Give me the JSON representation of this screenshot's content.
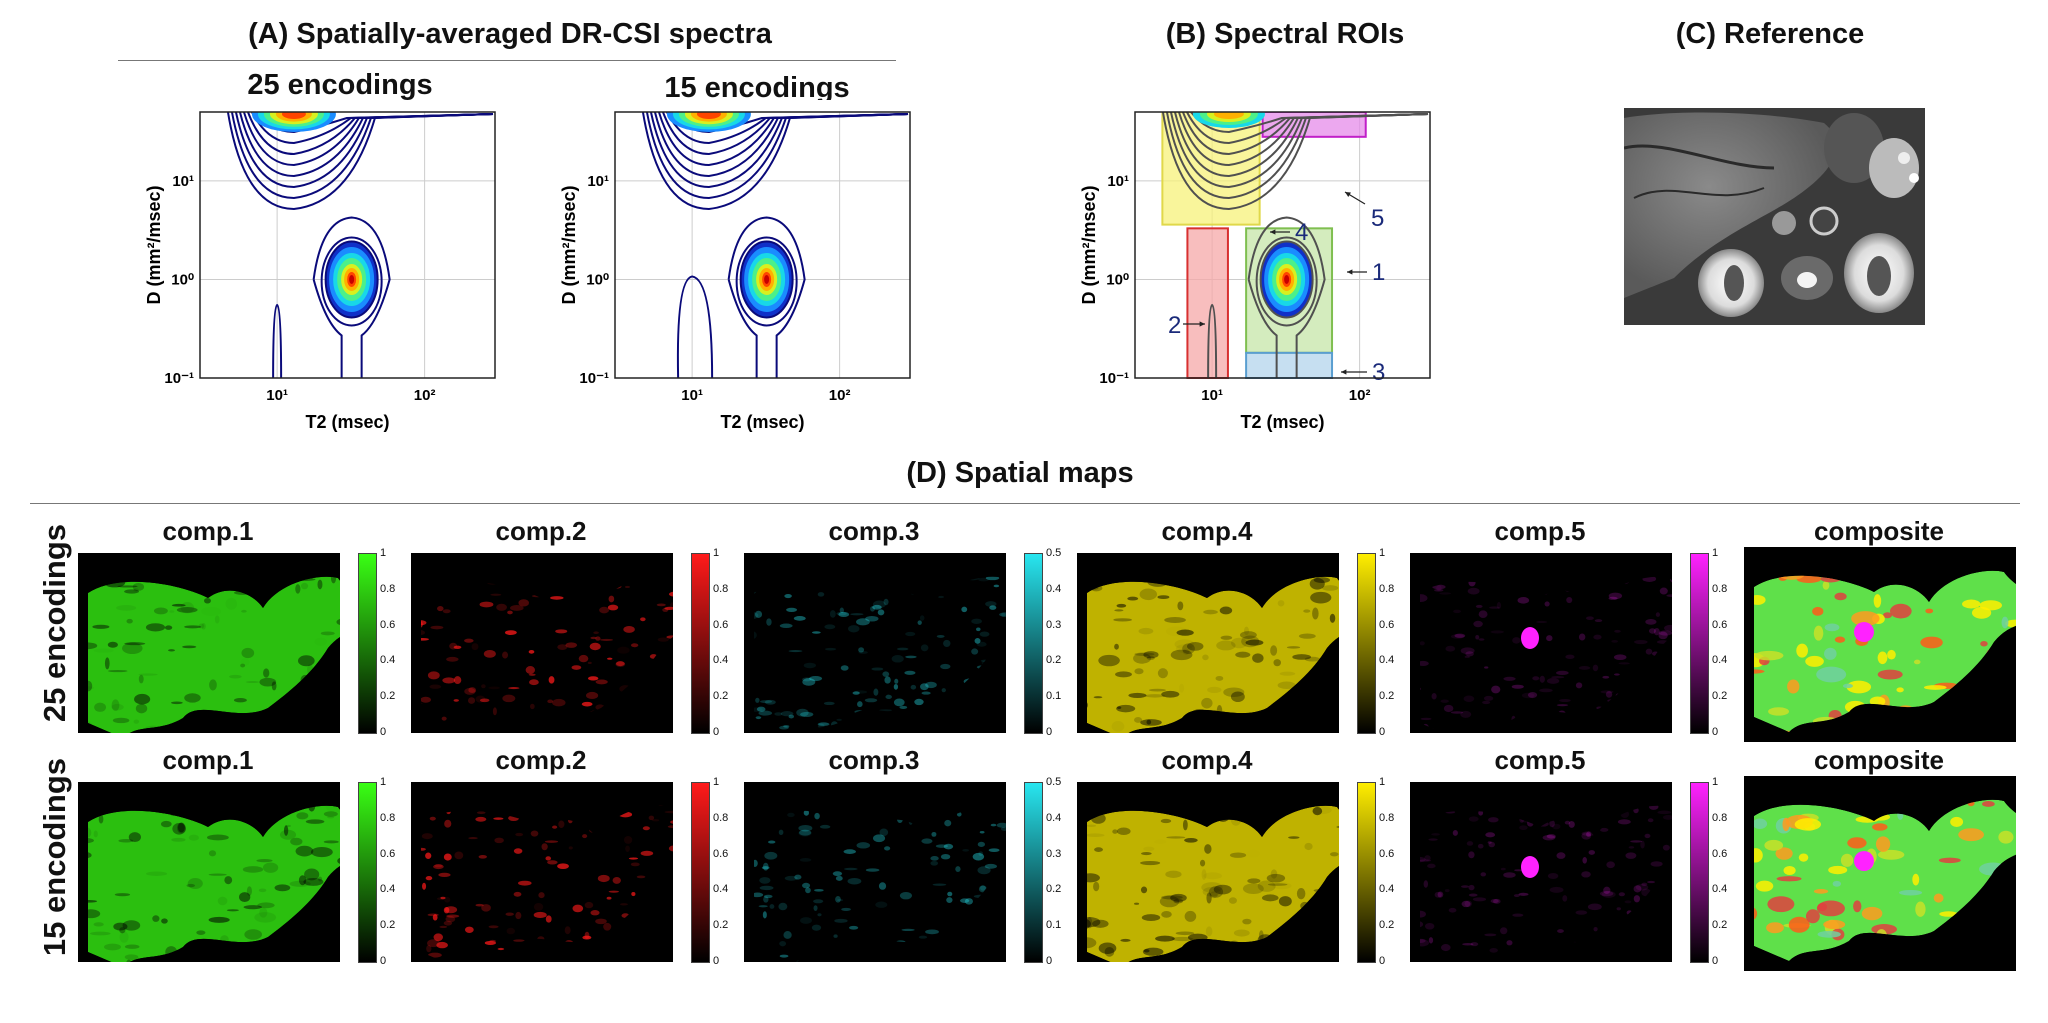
{
  "panels": {
    "A": {
      "title": "(A) Spatially-averaged DR-CSI spectra",
      "plots": [
        {
          "title": "25 encodings"
        },
        {
          "title": "15 encodings"
        }
      ]
    },
    "B": {
      "title": "(B) Spectral ROIs",
      "roi_labels": [
        "1",
        "2",
        "3",
        "4",
        "5"
      ],
      "roi_colors": {
        "1": "#c6e5a8",
        "2": "#f6a8a8",
        "3": "#b3d4ec",
        "4": "#f7f27a",
        "5": "#e68bea"
      },
      "roi_borders": {
        "1": "#7fbf50",
        "2": "#d83030",
        "3": "#5a9ed0",
        "4": "#e0d84a",
        "5": "#c020c8"
      }
    },
    "C": {
      "title": "(C) Reference"
    },
    "D": {
      "title": "(D) Spatial maps",
      "rows": [
        {
          "label": "25 encodings"
        },
        {
          "label": "15 encodings"
        }
      ],
      "maps": [
        {
          "title": "comp.1",
          "color": "#39ff14",
          "cb_ticks": [
            "1",
            "0.8",
            "0.6",
            "0.4",
            "0.2",
            "0"
          ]
        },
        {
          "title": "comp.2",
          "color": "#ff1a1a",
          "cb_ticks": [
            "1",
            "0.8",
            "0.6",
            "0.4",
            "0.2",
            "0"
          ]
        },
        {
          "title": "comp.3",
          "color": "#28e6f0",
          "cb_ticks": [
            "0.5",
            "0.4",
            "0.3",
            "0.2",
            "0.1",
            "0"
          ]
        },
        {
          "title": "comp.4",
          "color": "#ffee00",
          "cb_ticks": [
            "1",
            "0.8",
            "0.6",
            "0.4",
            "0.2",
            "0"
          ]
        },
        {
          "title": "comp.5",
          "color": "#ff22ff",
          "cb_ticks": [
            "1",
            "0.8",
            "0.6",
            "0.4",
            "0.2",
            "0"
          ]
        },
        {
          "title": "composite"
        }
      ]
    }
  },
  "axes": {
    "xlabel": "T2 (msec)",
    "ylabel": "D (mm²/msec)",
    "x_ticks": [
      "10¹",
      "10²"
    ],
    "y_ticks": [
      "10¹",
      "10⁰",
      "10⁻¹"
    ]
  },
  "chart_data": [
    {
      "type": "contour",
      "title": "25 encodings",
      "xlabel": "T2 (msec)",
      "ylabel": "D (mm²/msec)",
      "xscale": "log",
      "yscale": "log",
      "xlim": [
        3,
        300
      ],
      "ylim": [
        0.1,
        50
      ],
      "grid": true,
      "peaks": [
        {
          "T2": 32,
          "D": 1.0
        },
        {
          "T2": 10,
          "D": 0.3
        },
        {
          "T2": 13,
          "D": 50
        }
      ]
    },
    {
      "type": "contour",
      "title": "15 encodings",
      "xlabel": "T2 (msec)",
      "ylabel": "D (mm²/msec)",
      "xscale": "log",
      "yscale": "log",
      "xlim": [
        3,
        300
      ],
      "ylim": [
        0.1,
        50
      ],
      "grid": true,
      "peaks": [
        {
          "T2": 32,
          "D": 1.0
        },
        {
          "T2": 10,
          "D": 0.5
        },
        {
          "T2": 13,
          "D": 50
        }
      ]
    },
    {
      "type": "contour",
      "title": "",
      "xlabel": "T2 (msec)",
      "ylabel": "D (mm²/msec)",
      "xscale": "log",
      "yscale": "log",
      "xlim": [
        3,
        300
      ],
      "ylim": [
        0.1,
        50
      ],
      "grid": true,
      "rois": [
        {
          "label": "1"
        },
        {
          "label": "2"
        },
        {
          "label": "3"
        },
        {
          "label": "4"
        },
        {
          "label": "5"
        }
      ]
    }
  ]
}
